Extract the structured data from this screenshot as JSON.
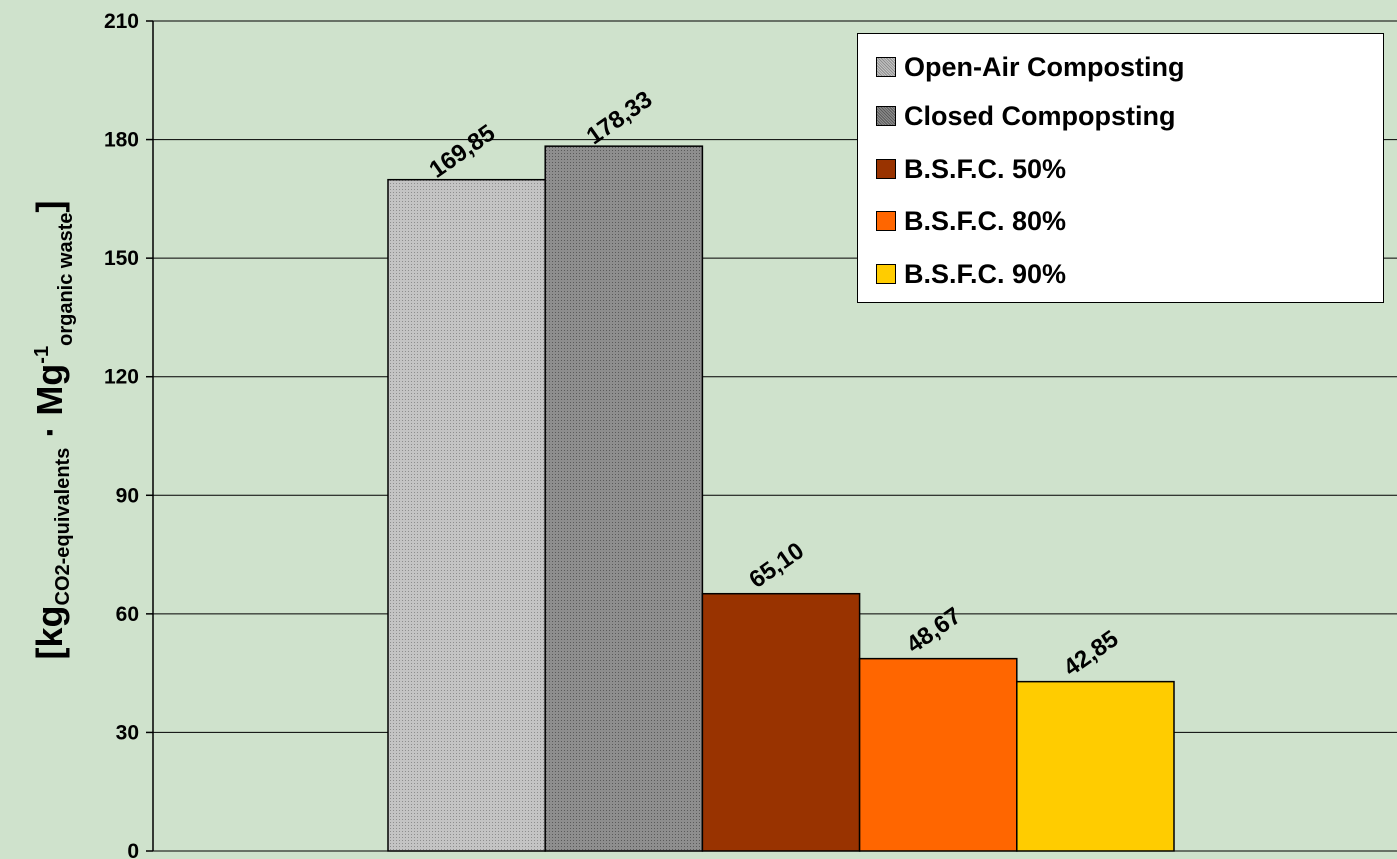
{
  "chart_data": {
    "type": "bar",
    "ylabel": {
      "open": "[kg",
      "unit_sub": "CO2-equivalents",
      "dot": " · Mg",
      "exp": "-1",
      "denom_sub": "organic waste",
      "close": "]"
    },
    "ylim": [
      0,
      210
    ],
    "yticks": [
      "0",
      "30",
      "60",
      "90",
      "120",
      "150",
      "180",
      "210"
    ],
    "grid": true,
    "legend_position": "top-right",
    "series": [
      {
        "name": "Open-Air Composting",
        "value": 169.85,
        "label": "169,85",
        "color": "#b8b8b8",
        "pattern": "dots-light"
      },
      {
        "name": "Closed Compopsting",
        "value": 178.33,
        "label": "178,33",
        "color": "#8a8a8a",
        "pattern": "dots-dark"
      },
      {
        "name": "B.S.F.C.  50%",
        "value": 65.1,
        "label": "65,10",
        "color": "#993300",
        "pattern": "solid"
      },
      {
        "name": "B.S.F.C.  80%",
        "value": 48.67,
        "label": "48,67",
        "color": "#ff6600",
        "pattern": "solid"
      },
      {
        "name": "B.S.F.C.  90%",
        "value": 42.85,
        "label": "42,85",
        "color": "#ffcc00",
        "pattern": "solid"
      }
    ]
  }
}
